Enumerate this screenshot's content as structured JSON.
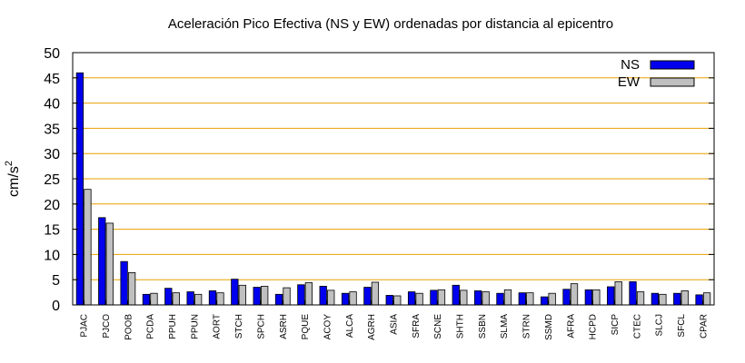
{
  "chart_data": {
    "type": "bar",
    "title": "Aceleración Pico Efectiva (NS y EW) ordenadas por distancia al epicentro",
    "ylabel": "cm/s",
    "ylabel_superscript": "2",
    "xlabel": "",
    "ylim": [
      0,
      50
    ],
    "yticks": [
      0,
      5,
      10,
      15,
      20,
      25,
      30,
      35,
      40,
      45,
      50
    ],
    "grid": "horizontal",
    "grid_color": "#e8a000",
    "legend_position": "top-right",
    "categories": [
      "PJAC",
      "PJCO",
      "POOB",
      "PCDA",
      "PPUH",
      "PPUN",
      "AORT",
      "STCH",
      "SPCH",
      "ASRH",
      "PQUE",
      "ACOY",
      "ALCA",
      "AGRH",
      "ASIA",
      "SFRA",
      "SCNE",
      "SHTH",
      "SSBN",
      "SLMA",
      "STRN",
      "SSMD",
      "AFRA",
      "HCPD",
      "SICP",
      "CTEC",
      "SLCJ",
      "SFCL",
      "CPAR"
    ],
    "series": [
      {
        "name": "NS",
        "color": "#0000ee",
        "values": [
          46,
          17.3,
          8.6,
          2.1,
          3.3,
          2.6,
          2.8,
          5.1,
          3.5,
          2.1,
          4.0,
          3.7,
          2.3,
          3.5,
          1.9,
          2.6,
          2.9,
          3.9,
          2.8,
          2.3,
          2.4,
          1.6,
          3.1,
          3.0,
          3.6,
          4.6,
          2.3,
          2.3,
          2.0
        ]
      },
      {
        "name": "EW",
        "color": "#c0c0c0",
        "values": [
          22.9,
          16.2,
          6.4,
          2.3,
          2.4,
          2.1,
          2.4,
          3.9,
          3.7,
          3.4,
          4.4,
          2.9,
          2.6,
          4.5,
          1.8,
          2.3,
          3.0,
          2.9,
          2.6,
          3.0,
          2.4,
          2.3,
          4.2,
          3.0,
          4.6,
          2.6,
          2.1,
          2.8,
          2.4
        ]
      }
    ]
  }
}
